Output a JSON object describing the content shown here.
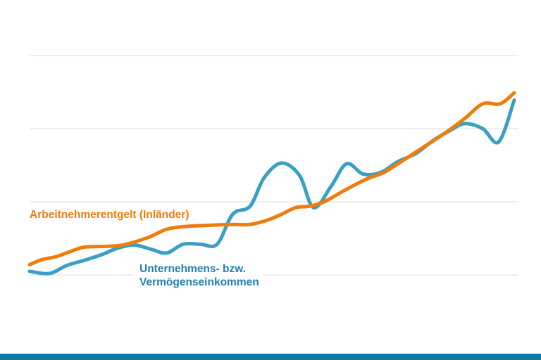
{
  "chart_data": {
    "type": "line",
    "title": "",
    "xlabel": "",
    "ylabel": "",
    "xlim": [
      0,
      100
    ],
    "ylim": [
      0,
      3
    ],
    "grid": true,
    "gridlines_y": [
      0,
      1,
      2,
      3
    ],
    "legend": "inline labels",
    "series": [
      {
        "name": "Arbeitnehmerentgelt (Inländer)",
        "color": "#ef7d0b",
        "x": [
          0,
          2.6,
          5.5,
          8.4,
          11.3,
          15.7,
          19.3,
          24.4,
          28.1,
          31.7,
          37.5,
          41.9,
          45.5,
          49.1,
          52,
          54.9,
          57.8,
          60.8,
          65.1,
          69.5,
          73.1,
          76.7,
          81.1,
          85.5,
          89.8,
          93.5,
          97.1,
          100
        ],
        "y": [
          0.14,
          0.21,
          0.25,
          0.32,
          0.38,
          0.39,
          0.41,
          0.51,
          0.62,
          0.66,
          0.68,
          0.69,
          0.69,
          0.75,
          0.83,
          0.92,
          0.94,
          1.0,
          1.16,
          1.31,
          1.4,
          1.55,
          1.74,
          1.93,
          2.14,
          2.34,
          2.34,
          2.49
        ]
      },
      {
        "name": "Unternehmens- bzw. Vermögenseinkommen",
        "name_lines": [
          "Unternehmens- bzw.",
          "Vermögenseinkommen"
        ],
        "color": "#3a9fc4",
        "x": [
          0,
          4.1,
          7.7,
          11.3,
          15,
          17.9,
          21.5,
          25.1,
          28.3,
          31.7,
          35.3,
          38.7,
          41.9,
          45.5,
          48.4,
          52,
          55.7,
          58.6,
          62.2,
          65.4,
          68.8,
          72.4,
          76,
          79.7,
          83.3,
          86.9,
          89.8,
          93.5,
          96.8,
          100
        ],
        "y": [
          0.05,
          0.02,
          0.13,
          0.2,
          0.28,
          0.36,
          0.41,
          0.35,
          0.3,
          0.42,
          0.42,
          0.42,
          0.83,
          0.94,
          1.33,
          1.53,
          1.36,
          0.92,
          1.21,
          1.52,
          1.38,
          1.4,
          1.55,
          1.66,
          1.84,
          1.98,
          2.07,
          2.0,
          1.82,
          2.39
        ]
      }
    ]
  },
  "footer": {
    "bar_color": "#1478a8"
  }
}
